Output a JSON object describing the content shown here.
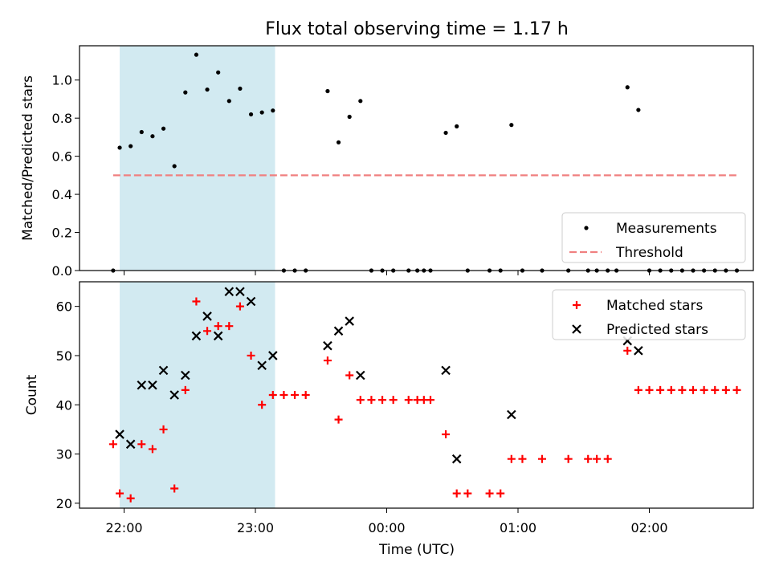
{
  "chart_data": [
    {
      "type": "scatter",
      "title": "Flux total observing time = 1.17 h",
      "ylabel": "Matched/Predicted stars",
      "xlabel": "",
      "ylim": [
        0,
        1.18
      ],
      "yticks": [
        0.0,
        0.2,
        0.4,
        0.6,
        0.8,
        1.0
      ],
      "ytick_labels": [
        "0.0",
        "0.2",
        "0.4",
        "0.6",
        "0.8",
        "1.0"
      ],
      "shaded_interval": {
        "start": "21:58",
        "end": "23:09",
        "color": "#add8e6"
      },
      "legend_placement": "lower-right",
      "series": [
        {
          "name": "Measurements",
          "marker": "dot",
          "color": "#000000",
          "points": [
            [
              "21:55",
              0.0
            ],
            [
              "21:58",
              0.645
            ],
            [
              "22:03",
              0.653
            ],
            [
              "22:08",
              0.727
            ],
            [
              "22:13",
              0.705
            ],
            [
              "22:18",
              0.745
            ],
            [
              "22:23",
              0.548
            ],
            [
              "22:28",
              0.935
            ],
            [
              "22:33",
              1.133
            ],
            [
              "22:38",
              0.95
            ],
            [
              "22:43",
              1.04
            ],
            [
              "22:48",
              0.89
            ],
            [
              "22:53",
              0.955
            ],
            [
              "22:58",
              0.82
            ],
            [
              "23:03",
              0.83
            ],
            [
              "23:08",
              0.84
            ],
            [
              "23:13",
              0.0
            ],
            [
              "23:18",
              0.0
            ],
            [
              "23:23",
              0.0
            ],
            [
              "23:33",
              0.942
            ],
            [
              "23:38",
              0.673
            ],
            [
              "23:43",
              0.807
            ],
            [
              "23:48",
              0.89
            ],
            [
              "23:53",
              0.0
            ],
            [
              "23:58",
              0.0
            ],
            [
              "00:03",
              0.0
            ],
            [
              "00:10",
              0.0
            ],
            [
              "00:14",
              0.0
            ],
            [
              "00:17",
              0.0
            ],
            [
              "00:20",
              0.0
            ],
            [
              "00:27",
              0.723
            ],
            [
              "00:32",
              0.757
            ],
            [
              "00:37",
              0.0
            ],
            [
              "00:47",
              0.0
            ],
            [
              "00:52",
              0.0
            ],
            [
              "00:57",
              0.764
            ],
            [
              "01:02",
              0.0
            ],
            [
              "01:11",
              0.0
            ],
            [
              "01:23",
              0.0
            ],
            [
              "01:32",
              0.0
            ],
            [
              "01:36",
              0.0
            ],
            [
              "01:41",
              0.0
            ],
            [
              "01:45",
              0.0
            ],
            [
              "01:50",
              0.962
            ],
            [
              "01:55",
              0.843
            ],
            [
              "02:00",
              0.0
            ],
            [
              "02:05",
              0.0
            ],
            [
              "02:10",
              0.0
            ],
            [
              "02:15",
              0.0
            ],
            [
              "02:20",
              0.0
            ],
            [
              "02:25",
              0.0
            ],
            [
              "02:30",
              0.0
            ],
            [
              "02:35",
              0.0
            ],
            [
              "02:40",
              0.0
            ]
          ]
        },
        {
          "name": "Threshold",
          "marker": "dashed-line",
          "color": "#f08080",
          "points": [
            [
              "21:55",
              0.5
            ],
            [
              "02:40",
              0.5
            ]
          ]
        }
      ]
    },
    {
      "type": "scatter",
      "title": "",
      "ylabel": "Count",
      "xlabel": "Time (UTC)",
      "ylim": [
        19,
        65
      ],
      "yticks": [
        20,
        30,
        40,
        50,
        60
      ],
      "ytick_labels": [
        "20",
        "30",
        "40",
        "50",
        "60"
      ],
      "xticks": [
        "22:00",
        "23:00",
        "00:00",
        "01:00",
        "02:00"
      ],
      "xtick_labels": [
        "22:00",
        "23:00",
        "00:00",
        "01:00",
        "02:00"
      ],
      "shaded_interval": {
        "start": "21:58",
        "end": "23:09",
        "color": "#add8e6"
      },
      "legend_placement": "upper-right",
      "series": [
        {
          "name": "Matched stars",
          "marker": "plus",
          "color": "#ff0000",
          "points": [
            [
              "21:55",
              32
            ],
            [
              "21:58",
              22
            ],
            [
              "22:03",
              21
            ],
            [
              "22:08",
              32
            ],
            [
              "22:13",
              31
            ],
            [
              "22:18",
              35
            ],
            [
              "22:23",
              23
            ],
            [
              "22:28",
              43
            ],
            [
              "22:33",
              61
            ],
            [
              "22:38",
              55
            ],
            [
              "22:43",
              56
            ],
            [
              "22:48",
              56
            ],
            [
              "22:53",
              60
            ],
            [
              "22:58",
              50
            ],
            [
              "23:03",
              40
            ],
            [
              "23:08",
              42
            ],
            [
              "23:13",
              42
            ],
            [
              "23:18",
              42
            ],
            [
              "23:23",
              42
            ],
            [
              "23:33",
              49
            ],
            [
              "23:38",
              37
            ],
            [
              "23:43",
              46
            ],
            [
              "23:48",
              41
            ],
            [
              "23:53",
              41
            ],
            [
              "23:58",
              41
            ],
            [
              "00:03",
              41
            ],
            [
              "00:10",
              41
            ],
            [
              "00:14",
              41
            ],
            [
              "00:17",
              41
            ],
            [
              "00:20",
              41
            ],
            [
              "00:27",
              34
            ],
            [
              "00:32",
              22
            ],
            [
              "00:37",
              22
            ],
            [
              "00:47",
              22
            ],
            [
              "00:52",
              22
            ],
            [
              "00:57",
              29
            ],
            [
              "01:02",
              29
            ],
            [
              "01:11",
              29
            ],
            [
              "01:23",
              29
            ],
            [
              "01:32",
              29
            ],
            [
              "01:36",
              29
            ],
            [
              "01:41",
              29
            ],
            [
              "01:50",
              51
            ],
            [
              "01:55",
              43
            ],
            [
              "02:00",
              43
            ],
            [
              "02:05",
              43
            ],
            [
              "02:10",
              43
            ],
            [
              "02:15",
              43
            ],
            [
              "02:20",
              43
            ],
            [
              "02:25",
              43
            ],
            [
              "02:30",
              43
            ],
            [
              "02:35",
              43
            ],
            [
              "02:40",
              43
            ]
          ]
        },
        {
          "name": "Predicted stars",
          "marker": "x",
          "color": "#000000",
          "points": [
            [
              "21:58",
              34
            ],
            [
              "22:03",
              32
            ],
            [
              "22:08",
              44
            ],
            [
              "22:13",
              44
            ],
            [
              "22:18",
              47
            ],
            [
              "22:23",
              42
            ],
            [
              "22:28",
              46
            ],
            [
              "22:33",
              54
            ],
            [
              "22:38",
              58
            ],
            [
              "22:43",
              54
            ],
            [
              "22:48",
              63
            ],
            [
              "22:53",
              63
            ],
            [
              "22:58",
              61
            ],
            [
              "23:03",
              48
            ],
            [
              "23:08",
              50
            ],
            [
              "23:33",
              52
            ],
            [
              "23:38",
              55
            ],
            [
              "23:43",
              57
            ],
            [
              "23:48",
              46
            ],
            [
              "00:27",
              47
            ],
            [
              "00:32",
              29
            ],
            [
              "00:57",
              38
            ],
            [
              "01:50",
              53
            ],
            [
              "01:55",
              51
            ]
          ]
        }
      ]
    }
  ]
}
